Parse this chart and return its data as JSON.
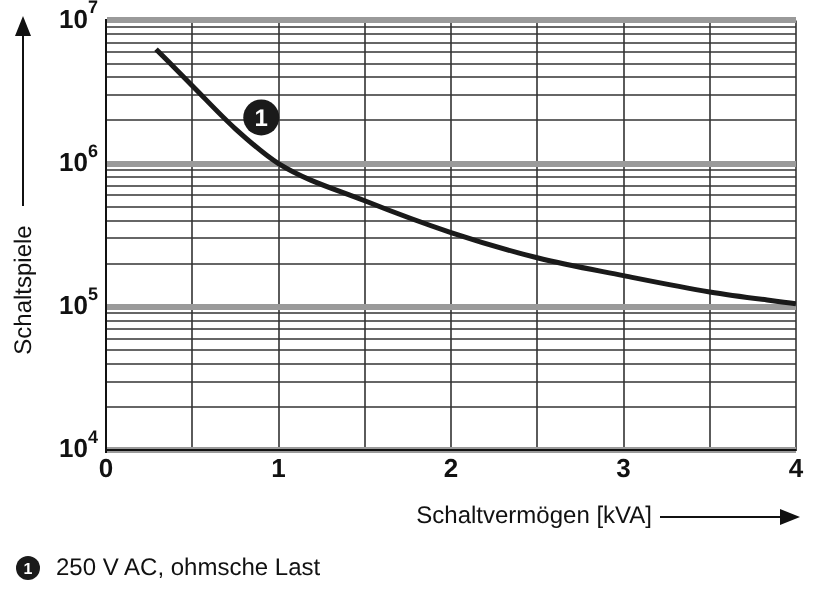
{
  "chart_data": {
    "type": "line",
    "xlabel": "Schaltvermögen [kVA]",
    "ylabel": "Schaltspiele",
    "log": "y",
    "grid": true,
    "marker": "none",
    "line_style": "solid",
    "xlim": [
      0,
      4
    ],
    "xticks": [
      0,
      {
        "value": 0.5,
        "label": null
      },
      1,
      {
        "value": 1.5,
        "label": null
      },
      2,
      {
        "value": 2.5,
        "label": null
      },
      3,
      {
        "value": 3.5,
        "label": null
      },
      4
    ],
    "ylim": [
      10000,
      10000000
    ],
    "yticks": [
      {
        "value": 10000,
        "label": "10$^{4}$"
      },
      {
        "value": 20000,
        "label": null
      },
      {
        "value": 30000,
        "label": null
      },
      {
        "value": 40000,
        "label": null
      },
      {
        "value": 50000,
        "label": null
      },
      {
        "value": 60000,
        "label": null
      },
      {
        "value": 70000,
        "label": null
      },
      {
        "value": 80000,
        "label": null
      },
      {
        "value": 90000,
        "label": null
      },
      {
        "value": 100000,
        "label": "10$^{5}$"
      },
      {
        "value": 200000,
        "label": null
      },
      {
        "value": 300000,
        "label": null
      },
      {
        "value": 400000,
        "label": null
      },
      {
        "value": 500000,
        "label": null
      },
      {
        "value": 600000,
        "label": null
      },
      {
        "value": 700000,
        "label": null
      },
      {
        "value": 800000,
        "label": null
      },
      {
        "value": 900000,
        "label": null
      },
      {
        "value": 1000000,
        "label": "10$^{6}$"
      },
      {
        "value": 2000000,
        "label": null
      },
      {
        "value": 3000000,
        "label": null
      },
      {
        "value": 4000000,
        "label": null
      },
      {
        "value": 5000000,
        "label": null
      },
      {
        "value": 6000000,
        "label": null
      },
      {
        "value": 7000000,
        "label": null
      },
      {
        "value": 8000000,
        "label": null
      },
      {
        "value": 9000000,
        "label": null
      },
      {
        "value": 10000000,
        "label": "10$^{7}$"
      }
    ],
    "series": [
      {
        "color": "#1a1a1a",
        "x": [
          0.29,
          0.5,
          0.75,
          1,
          1.5,
          2,
          2.5,
          3,
          3.5,
          4
        ],
        "values": [
          6300000,
          3500000,
          1750000,
          1000000,
          550000,
          330000,
          220000,
          165000,
          127000,
          105000
        ]
      }
    ],
    "annotations": [
      {
        "text": "1",
        "x": 0.9,
        "y": 2100000
      },
      "250 V AC, ohmsche Last"
    ]
  }
}
